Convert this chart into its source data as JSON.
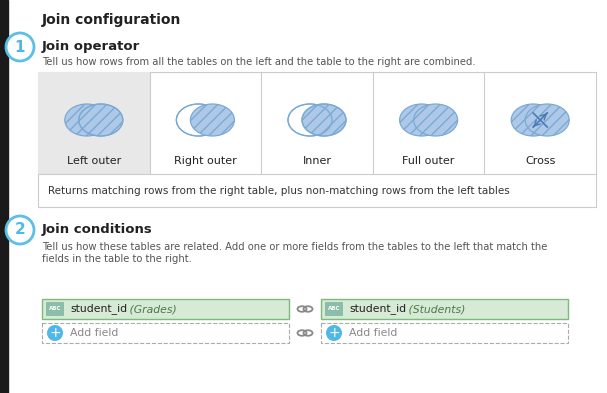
{
  "title": "Join configuration",
  "section1_title": "Join operator",
  "section1_desc": "Tell us how rows from all the tables on the left and the table to the right are combined.",
  "join_types": [
    "Left outer",
    "Right outer",
    "Inner",
    "Full outer",
    "Cross"
  ],
  "selected_join": 0,
  "join_description": "Returns matching rows from the right table, plus non-matching rows from the left tables",
  "section2_title": "Join conditions",
  "section2_desc": "Tell us how these tables are related. Add one or more fields from the tables to the left that match the\nfields in the table to the right.",
  "field1_label": "student_id",
  "field1_table": "(Grades)",
  "field2_label": "student_id",
  "field2_table": "(Students)",
  "add_field_text": "Add field",
  "bg_color": "#ffffff",
  "black_bar_color": "#1a1a1a",
  "circle_fill": "#aec8e8",
  "circle_edge": "#7aaad4",
  "circle_empty_fill": "#ffffff",
  "selected_bg": "#e8e8e8",
  "box_edge": "#cccccc",
  "field_bg": "#d6ead6",
  "field_border": "#7dba7d",
  "add_field_border": "#aaaaaa",
  "badge_fill_color": "#4eb8e8",
  "step_circle_edge": "#5bbfe8",
  "step_number_color": "#4eb8e8",
  "section_title_color": "#222222",
  "desc_text_color": "#555555",
  "abc_bg": "#8bbda8",
  "abc_text": "#ffffff",
  "link_icon_color": "#888888",
  "plus_circle_color": "#4eb8e8"
}
